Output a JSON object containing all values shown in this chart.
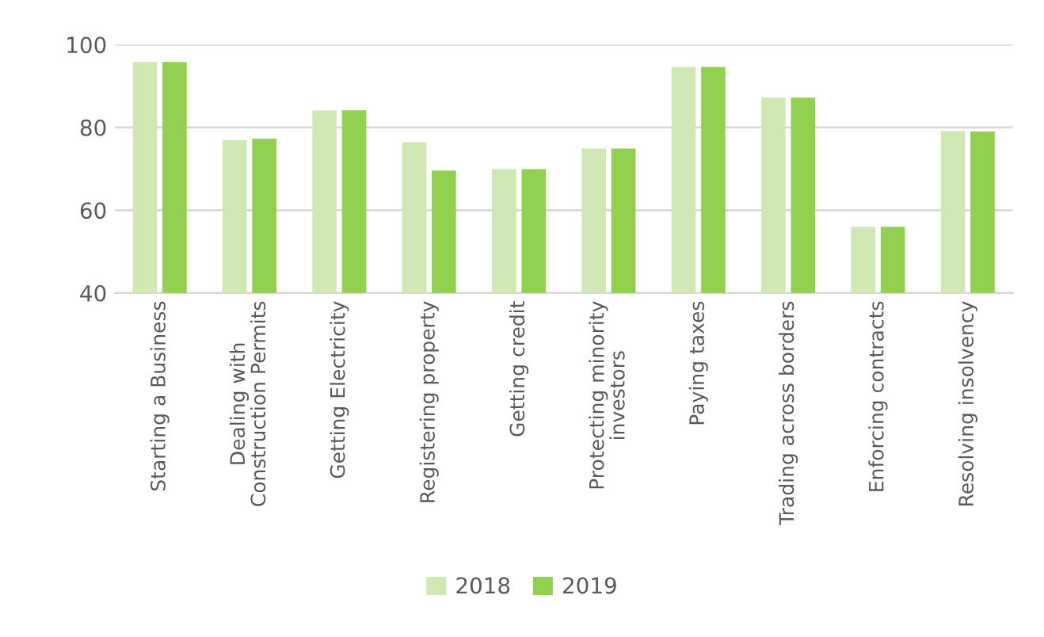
{
  "chart_data": {
    "type": "bar",
    "categories": [
      "Starting a Business",
      "Dealing with\nConstruction Permits",
      "Getting Electricity",
      "Registering property",
      "Getting credit",
      "Protecting minority\ninvestors",
      "Paying taxes",
      "Trading across borders",
      "Enforcing contracts",
      "Resolving insolvency"
    ],
    "series": [
      {
        "name": "2018",
        "color": "#d0e9b4",
        "values": [
          95.8,
          76.9,
          84.1,
          76.4,
          69.9,
          74.9,
          94.6,
          87.2,
          56.0,
          79.1
        ]
      },
      {
        "name": "2019",
        "color": "#92d050",
        "values": [
          95.8,
          77.3,
          84.1,
          69.6,
          69.9,
          74.9,
          94.6,
          87.2,
          56.0,
          79.0
        ]
      }
    ],
    "ylim": [
      40,
      100
    ],
    "yticks": [
      40,
      60,
      80,
      100
    ],
    "grid": "y",
    "legend": "bottom"
  }
}
